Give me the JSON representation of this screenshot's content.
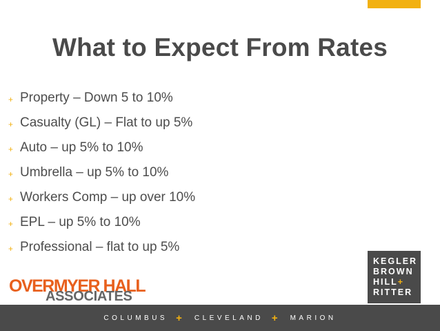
{
  "slide": {
    "title": "What to Expect From Rates",
    "bullets": [
      "Property – Down 5 to 10%",
      "Casualty (GL) – Flat to up 5%",
      "Auto – up 5% to 10%",
      "Umbrella – up 5% to 10%",
      "Workers Comp – up over 10%",
      "EPL – up 5% to 10%",
      "Professional – flat to up 5%"
    ],
    "bullet_marker": "+"
  },
  "logos": {
    "overmyer": {
      "line1": "OVERMYER HALL",
      "line2": "ASSOCIATES"
    },
    "kbhr": {
      "line1": "KEGLER",
      "line2": "BROWN",
      "line3": "HILL",
      "line3_plus": "+",
      "line4": "RITTER"
    }
  },
  "footer": {
    "cities": [
      "COLUMBUS",
      "CLEVELAND",
      "MARION"
    ],
    "separator": "+"
  },
  "colors": {
    "accent": "#f2b111",
    "title": "#4a4a4a",
    "text": "#4d4d4d",
    "overmyer_orange": "#e8601d",
    "footer_bg": "#4a4a4a"
  }
}
